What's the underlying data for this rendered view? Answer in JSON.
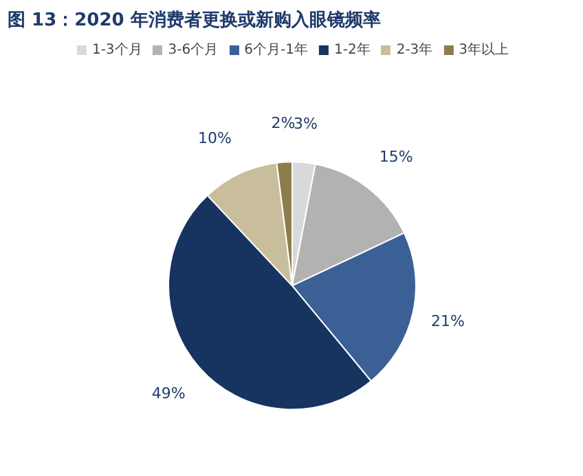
{
  "chart_data": {
    "type": "pie",
    "title": "图 13：2020 年消费者更换或新购入眼镜频率",
    "categories": [
      "1-3个月",
      "3-6个月",
      "6个月-1年",
      "1-2年",
      "2-3年",
      "3年以上"
    ],
    "values": [
      3,
      15,
      21,
      49,
      10,
      2
    ],
    "value_labels": [
      "3%",
      "15%",
      "21%",
      "49%",
      "10%",
      "2%"
    ],
    "colors": [
      "#d9d9d9",
      "#b2b2b2",
      "#3b6096",
      "#17335f",
      "#c9be9b",
      "#8c7e4c"
    ],
    "legend": "top"
  }
}
